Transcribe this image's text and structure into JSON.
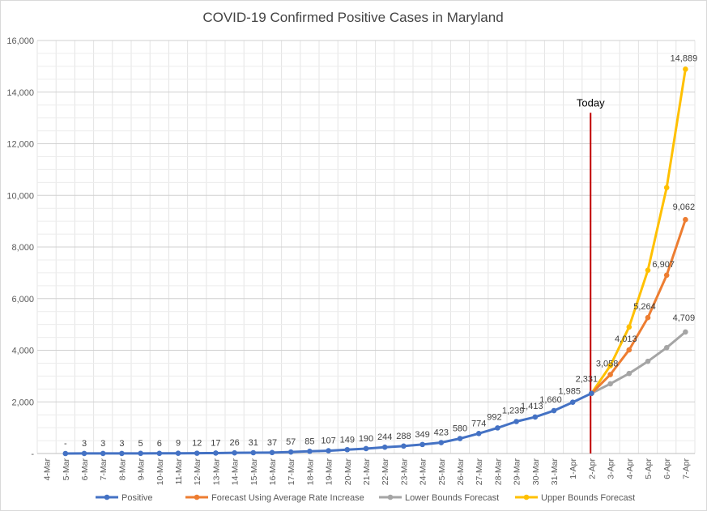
{
  "chart_data": {
    "type": "line",
    "title": "COVID-19 Confirmed Positive Cases in Maryland",
    "xlabel": "",
    "ylabel": "",
    "ylim": [
      0,
      16000
    ],
    "yticks": [
      0,
      2000,
      4000,
      6000,
      8000,
      10000,
      12000,
      14000,
      16000
    ],
    "ytick_labels": [
      "-",
      "2,000",
      "4,000",
      "6,000",
      "8,000",
      "10,000",
      "12,000",
      "14,000",
      "16,000"
    ],
    "categories": [
      "4-Mar",
      "5-Mar",
      "6-Mar",
      "7-Mar",
      "8-Mar",
      "9-Mar",
      "10-Mar",
      "11-Mar",
      "12-Mar",
      "13-Mar",
      "14-Mar",
      "15-Mar",
      "16-Mar",
      "17-Mar",
      "18-Mar",
      "19-Mar",
      "20-Mar",
      "21-Mar",
      "22-Mar",
      "23-Mar",
      "24-Mar",
      "25-Mar",
      "26-Mar",
      "27-Mar",
      "28-Mar",
      "29-Mar",
      "30-Mar",
      "31-Mar",
      "1-Apr",
      "2-Apr",
      "3-Apr",
      "4-Apr",
      "5-Apr",
      "6-Apr",
      "7-Apr"
    ],
    "grid": true,
    "legend_position": "bottom",
    "series": [
      {
        "name": "Positive",
        "color": "#4472C4",
        "values": [
          null,
          0,
          3,
          3,
          3,
          5,
          6,
          9,
          12,
          17,
          26,
          31,
          37,
          57,
          85,
          107,
          149,
          190,
          244,
          288,
          349,
          423,
          580,
          774,
          992,
          1239,
          1413,
          1660,
          1985,
          2331,
          null,
          null,
          null,
          null,
          null
        ],
        "labels": [
          "",
          "-",
          "3",
          "3",
          "3",
          "5",
          "6",
          "9",
          "12",
          "17",
          "26",
          "31",
          "37",
          "57",
          "85",
          "107",
          "149",
          "190",
          "244",
          "288",
          "349",
          "423",
          "580",
          "774",
          "992",
          "1,239",
          "1,413",
          "1,660",
          "1,985",
          "2,331",
          "",
          "",
          "",
          "",
          ""
        ]
      },
      {
        "name": "Forecast Using Average Rate Increase",
        "color": "#ED7D31",
        "values": [
          null,
          null,
          null,
          null,
          null,
          null,
          null,
          null,
          null,
          null,
          null,
          null,
          null,
          null,
          null,
          null,
          null,
          null,
          null,
          null,
          null,
          null,
          null,
          null,
          null,
          null,
          null,
          null,
          null,
          2331,
          3058,
          4013,
          5264,
          6907,
          9062
        ],
        "labels": [
          "",
          "",
          "",
          "",
          "",
          "",
          "",
          "",
          "",
          "",
          "",
          "",
          "",
          "",
          "",
          "",
          "",
          "",
          "",
          "",
          "",
          "",
          "",
          "",
          "",
          "",
          "",
          "",
          "",
          "2,331",
          "3,058",
          "4,013",
          "5,264",
          "6,907",
          "9,062"
        ]
      },
      {
        "name": "Lower Bounds Forecast",
        "color": "#A5A5A5",
        "values": [
          null,
          null,
          null,
          null,
          null,
          null,
          null,
          null,
          null,
          null,
          null,
          null,
          null,
          null,
          null,
          null,
          null,
          null,
          null,
          null,
          null,
          null,
          null,
          null,
          null,
          null,
          null,
          null,
          null,
          2331,
          2700,
          3100,
          3570,
          4100,
          4709
        ],
        "labels": [
          "",
          "",
          "",
          "",
          "",
          "",
          "",
          "",
          "",
          "",
          "",
          "",
          "",
          "",
          "",
          "",
          "",
          "",
          "",
          "",
          "",
          "",
          "",
          "",
          "",
          "",
          "",
          "",
          "",
          "",
          "",
          "",
          "",
          "",
          "4,709"
        ]
      },
      {
        "name": "Upper Bounds Forecast",
        "color": "#FFC000",
        "values": [
          null,
          null,
          null,
          null,
          null,
          null,
          null,
          null,
          null,
          null,
          null,
          null,
          null,
          null,
          null,
          null,
          null,
          null,
          null,
          null,
          null,
          null,
          null,
          null,
          null,
          null,
          null,
          null,
          null,
          2331,
          3400,
          4900,
          7100,
          10300,
          14889
        ],
        "labels": [
          "",
          "",
          "",
          "",
          "",
          "",
          "",
          "",
          "",
          "",
          "",
          "",
          "",
          "",
          "",
          "",
          "",
          "",
          "",
          "",
          "",
          "",
          "",
          "",
          "",
          "",
          "",
          "",
          "",
          "",
          "",
          "",
          "",
          "",
          "14,889"
        ]
      }
    ],
    "annotations": [
      {
        "text": "Today",
        "at_category": "2-Apr",
        "line_color": "#C00000",
        "y_top": 13200
      }
    ]
  }
}
